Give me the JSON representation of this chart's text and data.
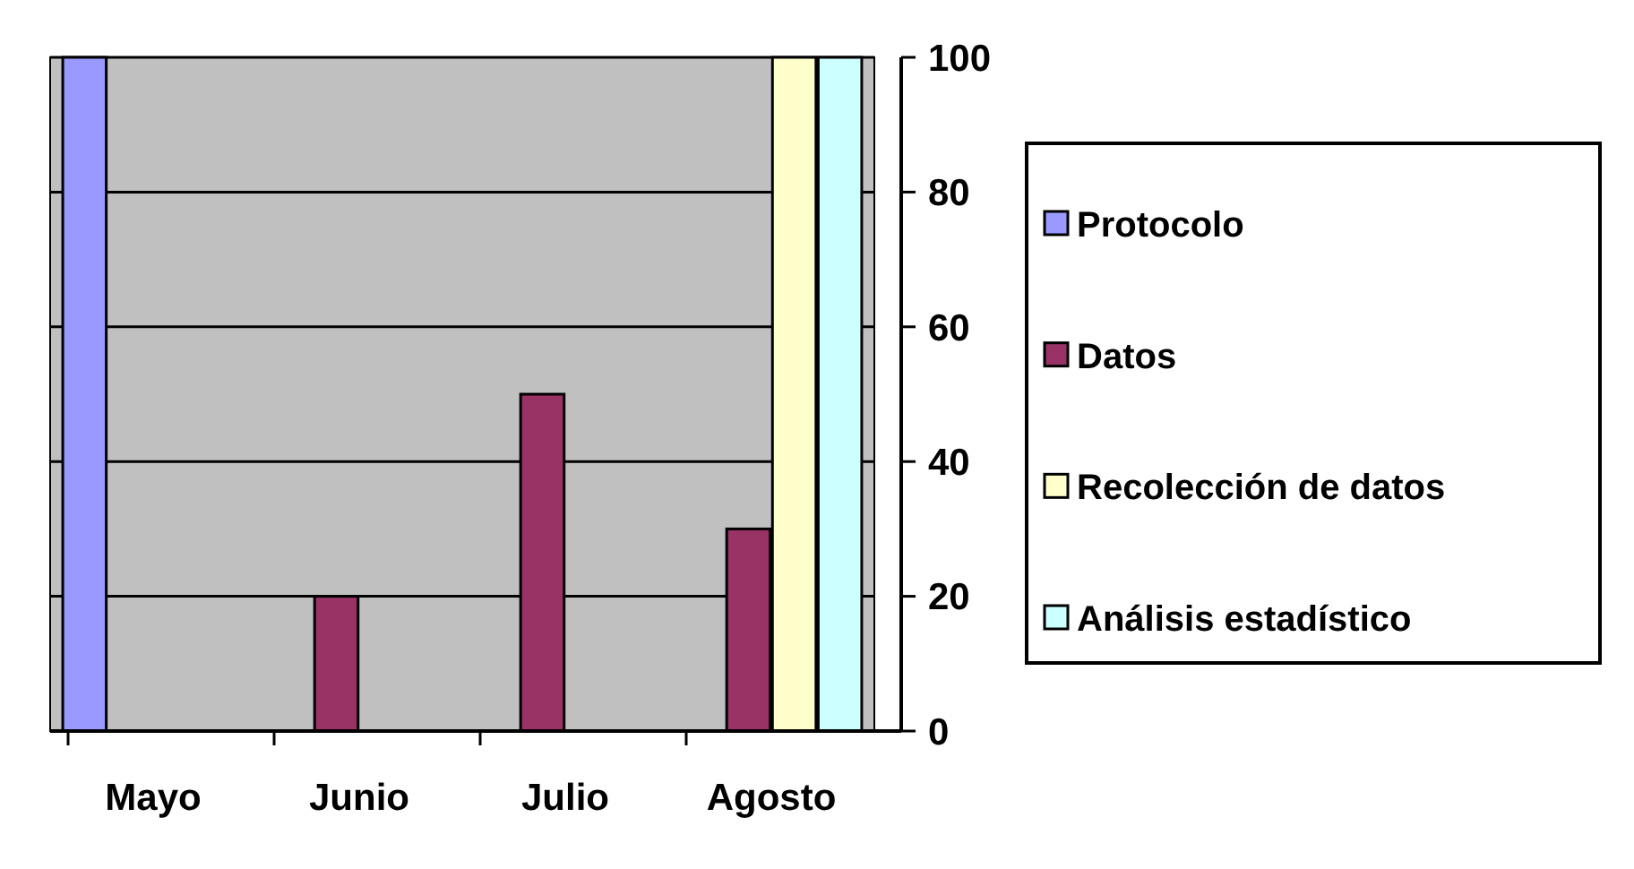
{
  "chart_data": {
    "type": "bar",
    "categories": [
      "Mayo",
      "Junio",
      "Julio",
      "Agosto"
    ],
    "series": [
      {
        "name": "Protocolo",
        "color": "#9999ff",
        "values": [
          100,
          null,
          null,
          null
        ]
      },
      {
        "name": "Datos",
        "color": "#993366",
        "values": [
          null,
          20,
          50,
          30
        ]
      },
      {
        "name": "Recolección de datos",
        "color": "#ffffcc",
        "values": [
          null,
          null,
          null,
          100
        ]
      },
      {
        "name": "Análisis estadístico",
        "color": "#ccffff",
        "values": [
          null,
          null,
          null,
          100
        ]
      }
    ],
    "ylim": [
      0,
      100
    ],
    "yticks": [
      0,
      20,
      40,
      60,
      80,
      100
    ],
    "grid": "y",
    "legend": "right"
  }
}
